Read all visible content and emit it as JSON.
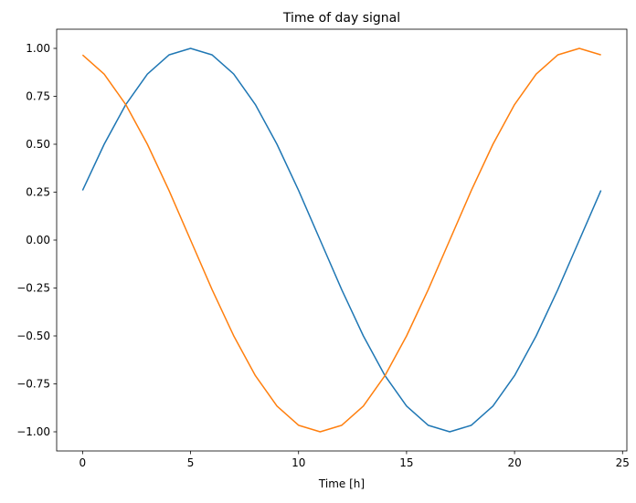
{
  "chart_data": {
    "type": "line",
    "title": "Time of day signal",
    "xlabel": "Time [h]",
    "ylabel": "",
    "xlim": [
      -1.2,
      25.2
    ],
    "ylim": [
      -1.1,
      1.1
    ],
    "xticks": [
      0,
      5,
      10,
      15,
      20,
      25
    ],
    "xtick_labels": [
      "0",
      "5",
      "10",
      "15",
      "20",
      "25"
    ],
    "yticks": [
      1.0,
      0.75,
      0.5,
      0.25,
      0.0,
      -0.25,
      -0.5,
      -0.75,
      -1.0
    ],
    "ytick_labels": [
      "1.00",
      "0.75",
      "0.50",
      "0.25",
      "0.00",
      "−0.25",
      "−0.50",
      "−0.75",
      "−1.00"
    ],
    "grid": false,
    "x": [
      0,
      1,
      2,
      3,
      4,
      5,
      6,
      7,
      8,
      9,
      10,
      11,
      12,
      13,
      14,
      15,
      16,
      17,
      18,
      19,
      20,
      21,
      22,
      23,
      24
    ],
    "series": [
      {
        "color": "#1f77b4",
        "values": [
          0.259,
          0.5,
          0.707,
          0.866,
          0.966,
          1.0,
          0.966,
          0.866,
          0.707,
          0.5,
          0.259,
          0.0,
          -0.259,
          -0.5,
          -0.707,
          -0.866,
          -0.966,
          -1.0,
          -0.966,
          -0.866,
          -0.707,
          -0.5,
          -0.259,
          0.0,
          0.259
        ]
      },
      {
        "color": "#ff7f0e",
        "values": [
          0.966,
          0.866,
          0.707,
          0.5,
          0.259,
          0.0,
          -0.259,
          -0.5,
          -0.707,
          -0.866,
          -0.966,
          -1.0,
          -0.966,
          -0.866,
          -0.707,
          -0.5,
          -0.259,
          0.0,
          0.259,
          0.5,
          0.707,
          0.866,
          0.966,
          1.0,
          0.966
        ]
      }
    ]
  }
}
